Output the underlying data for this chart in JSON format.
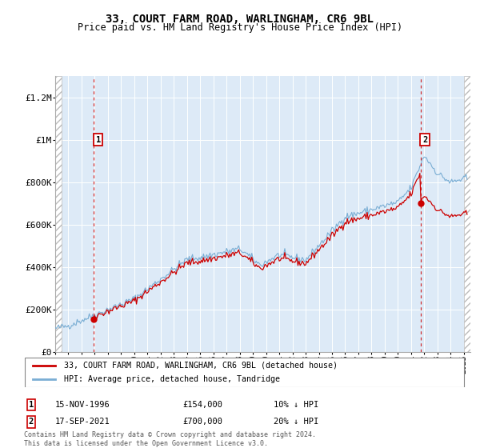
{
  "title": "33, COURT FARM ROAD, WARLINGHAM, CR6 9BL",
  "subtitle": "Price paid vs. HM Land Registry's House Price Index (HPI)",
  "sale1_year": 1996.917,
  "sale1_price": 154000,
  "sale2_year": 2021.708,
  "sale2_price": 700000,
  "hpi_color": "#7aaed4",
  "price_color": "#cc0000",
  "background_plot": "#ddeaf7",
  "ylim": [
    0,
    1300000
  ],
  "yticks": [
    0,
    200000,
    400000,
    600000,
    800000,
    1000000,
    1200000
  ],
  "ytick_labels": [
    "£0",
    "£200K",
    "£400K",
    "£600K",
    "£800K",
    "£1M",
    "£1.2M"
  ],
  "xstart": 1994.0,
  "xend": 2025.5,
  "legend_line1": "33, COURT FARM ROAD, WARLINGHAM, CR6 9BL (detached house)",
  "legend_line2": "HPI: Average price, detached house, Tandridge",
  "table_row1": [
    "1",
    "15-NOV-1996",
    "£154,000",
    "10% ↓ HPI"
  ],
  "table_row2": [
    "2",
    "17-SEP-2021",
    "£700,000",
    "20% ↓ HPI"
  ],
  "footer": "Contains HM Land Registry data © Crown copyright and database right 2024.\nThis data is licensed under the Open Government Licence v3.0."
}
